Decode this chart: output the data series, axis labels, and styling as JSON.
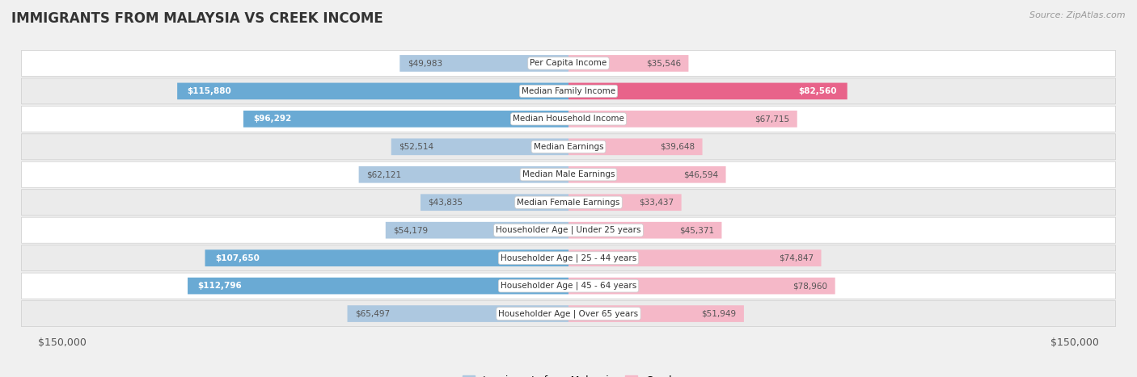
{
  "title": "IMMIGRANTS FROM MALAYSIA VS CREEK INCOME",
  "source": "Source: ZipAtlas.com",
  "categories": [
    "Per Capita Income",
    "Median Family Income",
    "Median Household Income",
    "Median Earnings",
    "Median Male Earnings",
    "Median Female Earnings",
    "Householder Age | Under 25 years",
    "Householder Age | 25 - 44 years",
    "Householder Age | 45 - 64 years",
    "Householder Age | Over 65 years"
  ],
  "malaysia_values": [
    49983,
    115880,
    96292,
    52514,
    62121,
    43835,
    54179,
    107650,
    112796,
    65497
  ],
  "creek_values": [
    35546,
    82560,
    67715,
    39648,
    46594,
    33437,
    45371,
    74847,
    78960,
    51949
  ],
  "malaysia_labels": [
    "$49,983",
    "$115,880",
    "$96,292",
    "$52,514",
    "$62,121",
    "$43,835",
    "$54,179",
    "$107,650",
    "$112,796",
    "$65,497"
  ],
  "creek_labels": [
    "$35,546",
    "$82,560",
    "$67,715",
    "$39,648",
    "$46,594",
    "$33,437",
    "$45,371",
    "$74,847",
    "$78,960",
    "$51,949"
  ],
  "malaysia_color_light": "#adc8e0",
  "malaysia_color_dark": "#6aaad4",
  "creek_color_light": "#f5b8c8",
  "creek_color_dark": "#e8638a",
  "max_value": 150000,
  "background_color": "#f0f0f0",
  "row_colors": [
    "#ffffff",
    "#ebebeb"
  ],
  "legend_malaysia": "Immigrants from Malaysia",
  "legend_creek": "Creek",
  "xlabel_left": "$150,000",
  "xlabel_right": "$150,000",
  "label_threshold": 80000,
  "label_inside_color_dark": "#ffffff",
  "label_outside_color": "#555555"
}
